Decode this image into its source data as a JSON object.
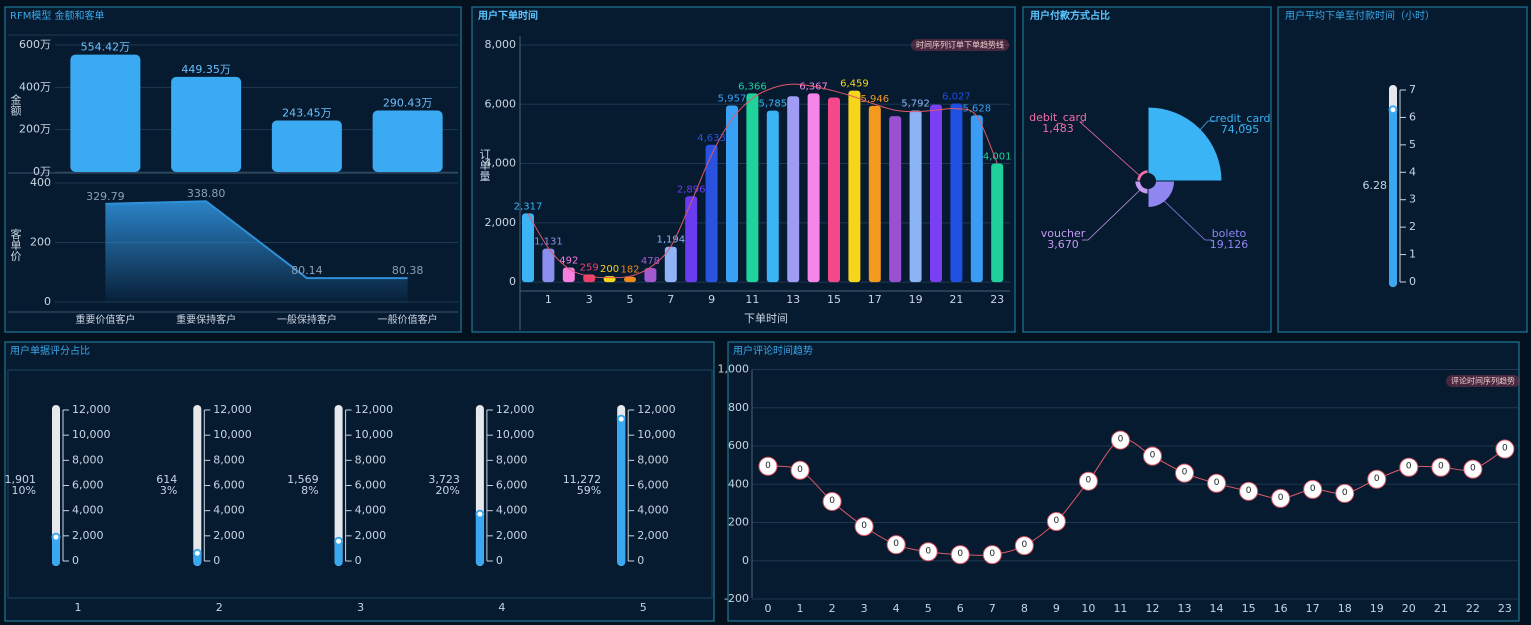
{
  "chart_data": [
    {
      "type": "bar",
      "title": "RFM模型 金额和客单",
      "y_label": "金额",
      "categories": [
        "重要价值客户",
        "重要保持客户",
        "一般保持客户",
        "一般价值客户"
      ],
      "values": [
        554.42,
        449.35,
        243.45,
        290.43
      ],
      "value_labels": [
        "554.42万",
        "449.35万",
        "243.45万",
        "290.43万"
      ],
      "color": "#3aaaf2",
      "ylim": [
        0,
        600
      ],
      "yticks": [
        {
          "value": 0,
          "label": "0万"
        },
        {
          "value": 200,
          "label": "200万"
        },
        {
          "value": 400,
          "label": "400万"
        },
        {
          "value": 600,
          "label": "600万"
        }
      ]
    },
    {
      "type": "area",
      "y_label": "客单价",
      "values": [
        329.79,
        338.8,
        80.14,
        80.38
      ],
      "value_labels": [
        "329.79",
        "338.80",
        "80.14",
        "80.38"
      ],
      "color": "#2f8fd8",
      "ylim": [
        0,
        400
      ],
      "yticks": [
        0,
        200,
        400
      ]
    },
    {
      "type": "bar",
      "title": "用户下单时间",
      "x_label": "下单时间",
      "y_label": "订单量",
      "categories": [
        null,
        "1",
        null,
        "3",
        null,
        "5",
        null,
        "7",
        null,
        "9",
        null,
        "11",
        null,
        "13",
        null,
        "15",
        null,
        "17",
        null,
        "19",
        null,
        "21",
        null,
        "23"
      ],
      "values": [
        2317,
        1131,
        492,
        259,
        200,
        182,
        478,
        1194,
        2896,
        4633,
        5957,
        6366,
        5785,
        6270,
        6367,
        6230,
        6459,
        5946,
        5600,
        5792,
        5990,
        6027,
        5628,
        4001
      ],
      "value_labels": [
        "2,317",
        "1,131",
        "492",
        "259",
        "200",
        "182",
        "478",
        "1,194",
        "2,896",
        "4,633",
        "5,957",
        "6,366",
        "5,785",
        null,
        "6,367",
        null,
        "6,459",
        "5,946",
        null,
        "5,792",
        null,
        "6,027",
        "5,628",
        "4,001"
      ],
      "colors": [
        "#3ab4f5",
        "#8a8ff0",
        "#f77fe0",
        "#f0406a",
        "#f7d51a",
        "#f08a1a",
        "#a35acf",
        "#8fb3f5",
        "#6a3cf0",
        "#2a52e0",
        "#3aa0f5",
        "#1fd39a",
        "#3ab4f5",
        "#a09cf5",
        "#f585e8",
        "#f5488a",
        "#f7d51a",
        "#f39a1e",
        "#9a50d0",
        "#8cb4f5",
        "#7a3ff0",
        "#2050e0",
        "#3a9cf5",
        "#20d09a"
      ],
      "trend": {
        "name": "时间序列订单下单趋势线",
        "color": "#e05a6a",
        "values": [
          2317,
          1150,
          450,
          200,
          150,
          200,
          500,
          1200,
          2700,
          4300,
          5500,
          6200,
          6550,
          6680,
          6600,
          6450,
          6250,
          6000,
          5800,
          5750,
          5800,
          5850,
          5600,
          4000
        ]
      },
      "ylim": [
        -300,
        8000
      ],
      "yticks": [
        0,
        {
          "value": 2000,
          "label": "2,000"
        },
        {
          "value": 4000,
          "label": "4,000"
        },
        {
          "value": 6000,
          "label": "6,000"
        },
        {
          "value": 8000,
          "label": "8,000"
        }
      ]
    },
    {
      "type": "pie",
      "title": "用户付款方式占比",
      "categories": [
        "credit_card",
        "boleto",
        "voucher",
        "debit_card"
      ],
      "values": [
        74095,
        19126,
        3670,
        1483
      ],
      "value_labels": [
        "74,095",
        "19,126",
        "3,670",
        "1,483"
      ],
      "colors": [
        "#3ab4f5",
        "#8f86f2",
        "#c59af0",
        "#f36fa6"
      ]
    },
    {
      "type": "gauge",
      "title": "用户平均下单至付款时间（小时）",
      "value": 6.28,
      "color": "#3aa8f0",
      "ylim": [
        0,
        7
      ],
      "yticks": [
        0,
        1,
        2,
        3,
        4,
        5,
        6,
        7
      ]
    },
    {
      "type": "gauges",
      "title": "用户单据评分占比",
      "categories": [
        "1",
        "2",
        "3",
        "4",
        "5"
      ],
      "values": [
        1901,
        614,
        1569,
        3723,
        11272
      ],
      "value_labels": [
        "1,901",
        "614",
        "1,569",
        "3,723",
        "11,272"
      ],
      "percents": [
        10,
        3,
        8,
        20,
        59
      ],
      "percent_labels": [
        "10%",
        "3%",
        "8%",
        "20%",
        "59%"
      ],
      "color": "#3aa8f0",
      "ylim": [
        0,
        12000
      ],
      "yticks": [
        0,
        {
          "value": 2000,
          "label": "2,000"
        },
        {
          "value": 4000,
          "label": "4,000"
        },
        {
          "value": 6000,
          "label": "6,000"
        },
        {
          "value": 8000,
          "label": "8,000"
        },
        {
          "value": 10000,
          "label": "10,000"
        },
        {
          "value": 12000,
          "label": "12,000"
        }
      ]
    },
    {
      "type": "line",
      "title": "用户评论时间趋势",
      "categories": [
        "0",
        "1",
        "2",
        "3",
        "4",
        "5",
        "6",
        "7",
        "8",
        "9",
        "10",
        "11",
        "12",
        "13",
        "14",
        "15",
        "16",
        "17",
        "18",
        "19",
        "20",
        "21",
        "22",
        "23"
      ],
      "series": [
        {
          "name": "评论时间序列趋势",
          "color": "#e05a6a",
          "values": [
            494,
            473,
            310,
            179,
            84,
            47,
            32,
            32,
            79,
            205,
            416,
            631,
            547,
            458,
            405,
            363,
            326,
            373,
            352,
            426,
            489,
            489,
            479,
            584
          ]
        }
      ],
      "marker_label": "0",
      "ylim": [
        -200,
        1000
      ],
      "yticks": [
        -200,
        0,
        200,
        400,
        600,
        800,
        {
          "value": 1000,
          "label": "1,000"
        }
      ]
    }
  ]
}
